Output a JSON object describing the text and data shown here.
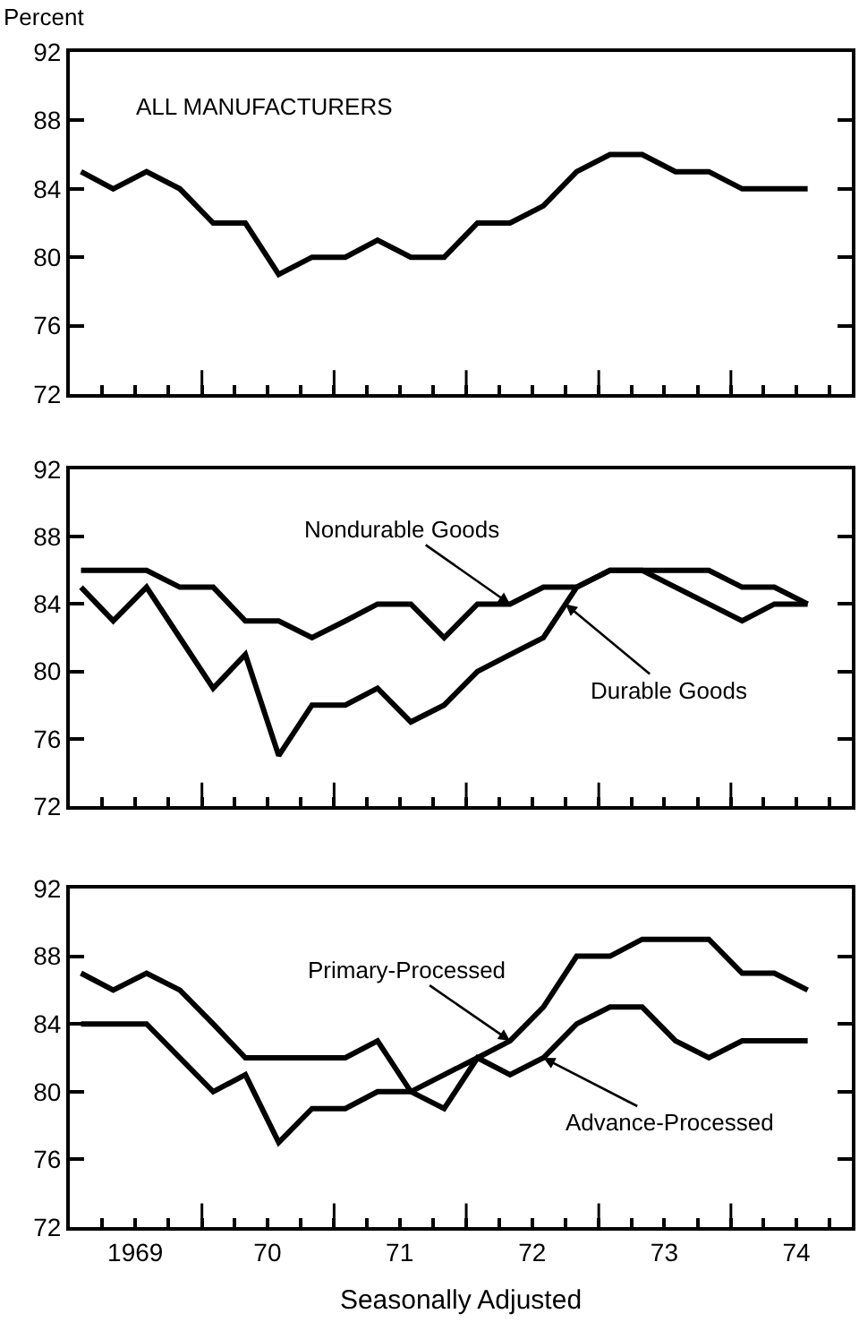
{
  "chart_data": [
    {
      "type": "line",
      "ylabel": "Percent",
      "tick_labels": "y",
      "annotations": [
        "ALL MANUFACTURERS"
      ],
      "x": [
        "1969-02",
        "1969-05",
        "1969-08",
        "1969-11",
        "1970-02",
        "1970-05",
        "1970-08",
        "1970-11",
        "1971-02",
        "1971-05",
        "1971-08",
        "1971-11",
        "1972-02",
        "1972-05",
        "1972-08",
        "1972-11",
        "1973-02",
        "1973-05",
        "1973-08",
        "1973-11",
        "1974-02",
        "1974-05",
        "1974-08"
      ],
      "series": [
        {
          "color": "#000000",
          "values": [
            85,
            84,
            85,
            84,
            82,
            82,
            79,
            80,
            80,
            81,
            80,
            80,
            82,
            82,
            83,
            85,
            86,
            86,
            85,
            85,
            84,
            84,
            84
          ]
        }
      ],
      "xlim": [
        "1969-01",
        "1974-12"
      ],
      "xticks": [
        {
          "value": "1969-04",
          "label": null
        },
        {
          "value": "1969-07",
          "label": null
        },
        {
          "value": "1969-10",
          "label": null
        },
        {
          "value": "1970-01",
          "label": null
        },
        {
          "value": "1970-04",
          "label": null
        },
        {
          "value": "1970-07",
          "label": null
        },
        {
          "value": "1970-10",
          "label": null
        },
        {
          "value": "1971-01",
          "label": null
        },
        {
          "value": "1971-04",
          "label": null
        },
        {
          "value": "1971-07",
          "label": null
        },
        {
          "value": "1971-10",
          "label": null
        },
        {
          "value": "1972-01",
          "label": null
        },
        {
          "value": "1972-04",
          "label": null
        },
        {
          "value": "1972-07",
          "label": null
        },
        {
          "value": "1972-10",
          "label": null
        },
        {
          "value": "1973-01",
          "label": null
        },
        {
          "value": "1973-04",
          "label": null
        },
        {
          "value": "1973-07",
          "label": null
        },
        {
          "value": "1973-10",
          "label": null
        },
        {
          "value": "1974-01",
          "label": null
        },
        {
          "value": "1974-04",
          "label": null
        },
        {
          "value": "1974-07",
          "label": null
        },
        {
          "value": "1974-10",
          "label": null
        }
      ],
      "ylim": [
        72,
        92
      ],
      "yticks": [
        72,
        76,
        80,
        84,
        88,
        92
      ]
    },
    {
      "type": "line",
      "tick_labels": "y",
      "annotations": [
        {
          "text": "Nondurable Goods",
          "x": "1972-05",
          "y": 84
        },
        {
          "text": "Durable Goods",
          "x": "1972-10",
          "y": 84
        }
      ],
      "x": [
        "1969-02",
        "1969-05",
        "1969-08",
        "1969-11",
        "1970-02",
        "1970-05",
        "1970-08",
        "1970-11",
        "1971-02",
        "1971-05",
        "1971-08",
        "1971-11",
        "1972-02",
        "1972-05",
        "1972-08",
        "1972-11",
        "1973-02",
        "1973-05",
        "1973-08",
        "1973-11",
        "1974-02",
        "1974-05",
        "1974-08"
      ],
      "series": [
        {
          "color": "#000000",
          "values": [
            86,
            86,
            86,
            85,
            85,
            83,
            83,
            82,
            83,
            84,
            84,
            82,
            84,
            84,
            85,
            85,
            86,
            86,
            86,
            86,
            85,
            85,
            84
          ]
        },
        {
          "color": "#000000",
          "values": [
            85,
            83,
            85,
            82,
            79,
            81,
            75,
            78,
            78,
            79,
            77,
            78,
            80,
            81,
            82,
            85,
            86,
            86,
            85,
            84,
            83,
            84,
            84
          ]
        }
      ],
      "xlim": [
        "1969-01",
        "1974-12"
      ],
      "xticks": [
        {
          "value": "1969-04",
          "label": null
        },
        {
          "value": "1969-07",
          "label": null
        },
        {
          "value": "1969-10",
          "label": null
        },
        {
          "value": "1970-01",
          "label": null
        },
        {
          "value": "1970-04",
          "label": null
        },
        {
          "value": "1970-07",
          "label": null
        },
        {
          "value": "1970-10",
          "label": null
        },
        {
          "value": "1971-01",
          "label": null
        },
        {
          "value": "1971-04",
          "label": null
        },
        {
          "value": "1971-07",
          "label": null
        },
        {
          "value": "1971-10",
          "label": null
        },
        {
          "value": "1972-01",
          "label": null
        },
        {
          "value": "1972-04",
          "label": null
        },
        {
          "value": "1972-07",
          "label": null
        },
        {
          "value": "1972-10",
          "label": null
        },
        {
          "value": "1973-01",
          "label": null
        },
        {
          "value": "1973-04",
          "label": null
        },
        {
          "value": "1973-07",
          "label": null
        },
        {
          "value": "1973-10",
          "label": null
        },
        {
          "value": "1974-01",
          "label": null
        },
        {
          "value": "1974-04",
          "label": null
        },
        {
          "value": "1974-07",
          "label": null
        },
        {
          "value": "1974-10",
          "label": null
        }
      ],
      "ylim": [
        72,
        92
      ],
      "yticks": [
        72,
        76,
        80,
        84,
        88,
        92
      ]
    },
    {
      "type": "line",
      "xlabel": "Seasonally Adjusted",
      "annotations": [
        {
          "text": "Primary-Processed",
          "x": "1972-05",
          "y": 83
        },
        {
          "text": "Advance-Processed",
          "x": "1972-08",
          "y": 82
        }
      ],
      "x": [
        "1969-02",
        "1969-05",
        "1969-08",
        "1969-11",
        "1970-02",
        "1970-05",
        "1970-08",
        "1970-11",
        "1971-02",
        "1971-05",
        "1971-08",
        "1971-11",
        "1972-02",
        "1972-05",
        "1972-08",
        "1972-11",
        "1973-02",
        "1973-05",
        "1973-08",
        "1973-11",
        "1974-02",
        "1974-05",
        "1974-08"
      ],
      "series": [
        {
          "color": "#000000",
          "values": [
            84,
            84,
            84,
            82,
            80,
            81,
            77,
            79,
            79,
            80,
            80,
            81,
            82,
            83,
            85,
            88,
            88,
            89,
            89,
            89,
            87,
            87,
            86
          ]
        },
        {
          "color": "#000000",
          "values": [
            87,
            86,
            87,
            86,
            84,
            82,
            82,
            82,
            82,
            83,
            80,
            79,
            82,
            81,
            82,
            84,
            85,
            85,
            83,
            82,
            83,
            83,
            83
          ]
        }
      ],
      "xlim": [
        "1969-01",
        "1974-12"
      ],
      "xticks": [
        {
          "value": "1969-04",
          "label": null
        },
        {
          "value": "1969-07",
          "label": "1969"
        },
        {
          "value": "1969-10",
          "label": null
        },
        {
          "value": "1970-01",
          "label": null
        },
        {
          "value": "1970-04",
          "label": null
        },
        {
          "value": "1970-07",
          "label": "70"
        },
        {
          "value": "1970-10",
          "label": null
        },
        {
          "value": "1971-01",
          "label": null
        },
        {
          "value": "1971-04",
          "label": null
        },
        {
          "value": "1971-07",
          "label": "71"
        },
        {
          "value": "1971-10",
          "label": null
        },
        {
          "value": "1972-01",
          "label": null
        },
        {
          "value": "1972-04",
          "label": null
        },
        {
          "value": "1972-07",
          "label": "72"
        },
        {
          "value": "1972-10",
          "label": null
        },
        {
          "value": "1973-01",
          "label": null
        },
        {
          "value": "1973-04",
          "label": null
        },
        {
          "value": "1973-07",
          "label": "73"
        },
        {
          "value": "1973-10",
          "label": null
        },
        {
          "value": "1974-01",
          "label": null
        },
        {
          "value": "1974-04",
          "label": null
        },
        {
          "value": "1974-07",
          "label": "74"
        },
        {
          "value": "1974-10",
          "label": null
        }
      ],
      "ylim": [
        72,
        92
      ],
      "yticks": [
        72,
        76,
        80,
        84,
        88,
        92
      ]
    }
  ]
}
